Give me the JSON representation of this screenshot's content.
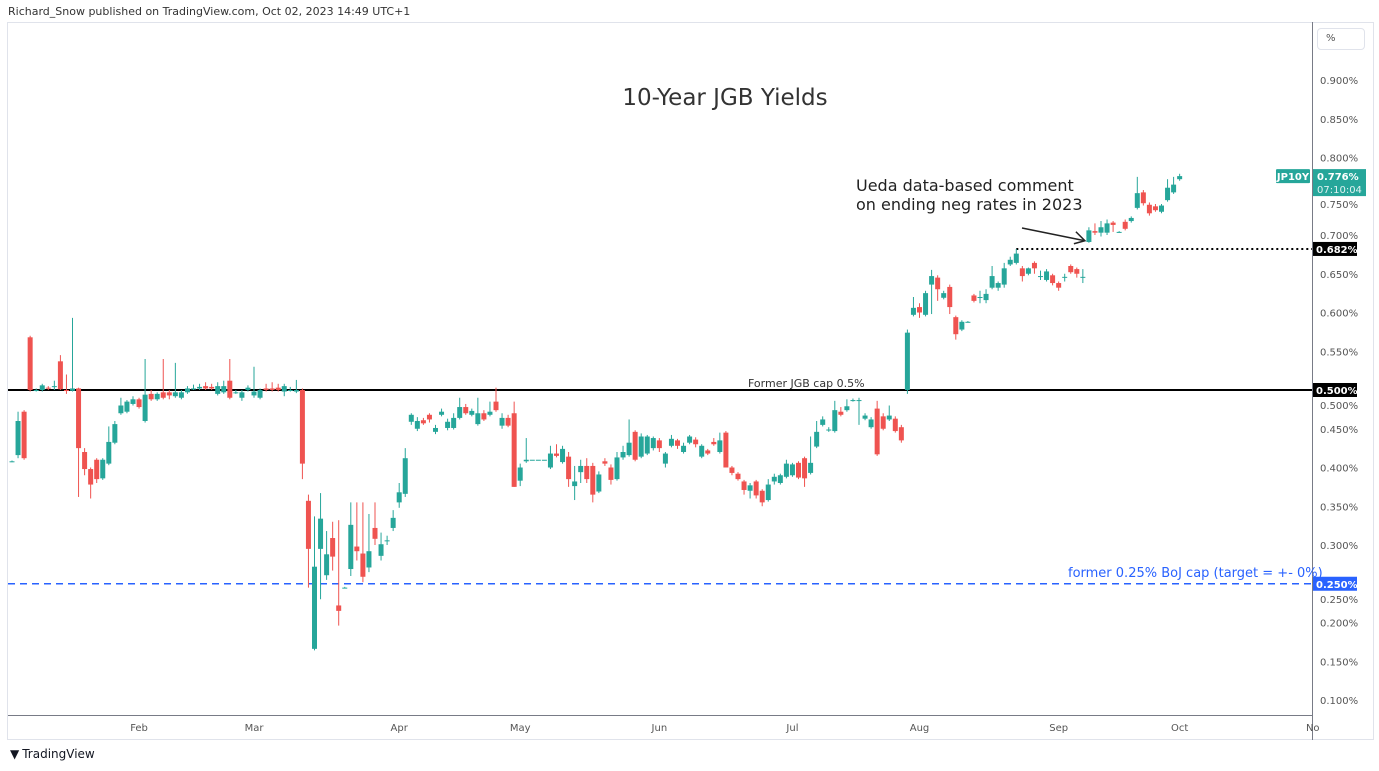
{
  "header": {
    "published": "Richard_Snow published on TradingView.com, Oct 02, 2023 14:49 UTC+1"
  },
  "footer": {
    "brand": "TradingView",
    "logo": "17"
  },
  "price_axis": {
    "unit": "%"
  },
  "chart_data": {
    "type": "candlestick",
    "title": "10-Year JGB Yields",
    "symbol": "JP10Y",
    "last_price_label": "0.776%",
    "countdown": "07:10:04",
    "ylim": [
      0.075,
      0.95
    ],
    "xlim_bars": [
      -1,
      215
    ],
    "y_ticks": [
      0.1,
      0.15,
      0.2,
      0.25,
      0.3,
      0.35,
      0.4,
      0.45,
      0.5,
      0.55,
      0.6,
      0.65,
      0.7,
      0.75,
      0.8,
      0.85,
      0.9
    ],
    "y_tick_format": "%",
    "month_ticks": [
      {
        "label": "Feb",
        "bar": 21
      },
      {
        "label": "Mar",
        "bar": 40
      },
      {
        "label": "Apr",
        "bar": 64
      },
      {
        "label": "May",
        "bar": 84
      },
      {
        "label": "Jun",
        "bar": 107
      },
      {
        "label": "Jul",
        "bar": 129
      },
      {
        "label": "Aug",
        "bar": 150
      },
      {
        "label": "Sep",
        "bar": 173
      },
      {
        "label": "Oct",
        "bar": 193
      },
      {
        "label": "No",
        "bar": 215
      }
    ],
    "colors": {
      "up": "#26a69a",
      "down": "#ef5350",
      "cap": "#000000",
      "boj": "#2962ff"
    },
    "levels": [
      {
        "name": "former-cap-line",
        "value": 0.5,
        "style": "solid",
        "color": "#000000",
        "label": "0.500%",
        "text": "Former JGB cap 0.5%"
      },
      {
        "name": "boj-cap-line",
        "value": 0.25,
        "style": "dashed",
        "color": "#2962ff",
        "label": "0.250%",
        "text": "former 0.25% BoJ cap (target = +- 0%)"
      },
      {
        "name": "ueda-level-line",
        "value": 0.682,
        "style": "dotted",
        "color": "#000000",
        "label": "0.682%",
        "from_bar": 166
      }
    ],
    "annotation": {
      "line1": "Ueda data-based comment",
      "line2": "on ending neg rates in 2023",
      "arrow_to_bar": 178,
      "arrow_to_value": 0.69
    },
    "candles_fields": [
      "bar",
      "open",
      "high",
      "low",
      "close"
    ],
    "candles": [
      [
        0,
        0.408,
        0.409,
        0.407,
        0.408
      ],
      [
        1,
        0.416,
        0.472,
        0.412,
        0.46
      ],
      [
        2,
        0.472,
        0.474,
        0.41,
        0.412
      ],
      [
        3,
        0.568,
        0.57,
        0.498,
        0.5
      ],
      [
        4,
        0.5,
        0.502,
        0.498,
        0.5
      ],
      [
        5,
        0.5,
        0.508,
        0.498,
        0.506
      ],
      [
        6,
        0.503,
        0.505,
        0.5,
        0.502
      ],
      [
        7,
        0.505,
        0.512,
        0.5,
        0.505
      ],
      [
        8,
        0.537,
        0.545,
        0.5,
        0.501
      ],
      [
        9,
        0.5,
        0.52,
        0.495,
        0.499
      ],
      [
        10,
        0.499,
        0.593,
        0.498,
        0.502
      ],
      [
        11,
        0.502,
        0.503,
        0.362,
        0.425
      ],
      [
        12,
        0.42,
        0.425,
        0.39,
        0.398
      ],
      [
        13,
        0.398,
        0.4,
        0.36,
        0.378
      ],
      [
        14,
        0.41,
        0.412,
        0.38,
        0.385
      ],
      [
        15,
        0.386,
        0.412,
        0.384,
        0.41
      ],
      [
        16,
        0.405,
        0.453,
        0.403,
        0.433
      ],
      [
        17,
        0.432,
        0.46,
        0.43,
        0.456
      ],
      [
        18,
        0.47,
        0.49,
        0.468,
        0.48
      ],
      [
        19,
        0.472,
        0.487,
        0.47,
        0.485
      ],
      [
        20,
        0.482,
        0.492,
        0.48,
        0.488
      ],
      [
        21,
        0.488,
        0.49,
        0.476,
        0.478
      ],
      [
        22,
        0.46,
        0.54,
        0.458,
        0.494
      ],
      [
        23,
        0.495,
        0.5,
        0.486,
        0.488
      ],
      [
        24,
        0.488,
        0.497,
        0.486,
        0.495
      ],
      [
        25,
        0.497,
        0.54,
        0.488,
        0.49
      ],
      [
        26,
        0.497,
        0.5,
        0.488,
        0.493
      ],
      [
        27,
        0.492,
        0.535,
        0.49,
        0.497
      ],
      [
        28,
        0.49,
        0.5,
        0.488,
        0.497
      ],
      [
        29,
        0.497,
        0.505,
        0.495,
        0.502
      ],
      [
        30,
        0.502,
        0.507,
        0.5,
        0.502
      ],
      [
        31,
        0.502,
        0.508,
        0.5,
        0.504
      ],
      [
        32,
        0.505,
        0.51,
        0.5,
        0.502
      ],
      [
        33,
        0.504,
        0.508,
        0.5,
        0.502
      ],
      [
        34,
        0.495,
        0.51,
        0.493,
        0.505
      ],
      [
        35,
        0.497,
        0.512,
        0.495,
        0.505
      ],
      [
        36,
        0.512,
        0.54,
        0.488,
        0.49
      ],
      [
        37,
        0.497,
        0.5,
        0.495,
        0.497
      ],
      [
        38,
        0.49,
        0.5,
        0.486,
        0.497
      ],
      [
        39,
        0.5,
        0.506,
        0.498,
        0.503
      ],
      [
        40,
        0.493,
        0.53,
        0.49,
        0.498
      ],
      [
        41,
        0.49,
        0.502,
        0.488,
        0.5
      ],
      [
        42,
        0.502,
        0.508,
        0.498,
        0.5
      ],
      [
        43,
        0.502,
        0.51,
        0.498,
        0.5
      ],
      [
        44,
        0.503,
        0.508,
        0.498,
        0.5
      ],
      [
        45,
        0.498,
        0.508,
        0.492,
        0.505
      ],
      [
        46,
        0.5,
        0.504,
        0.498,
        0.5
      ],
      [
        47,
        0.498,
        0.513,
        0.496,
        0.5
      ],
      [
        48,
        0.5,
        0.502,
        0.385,
        0.405
      ],
      [
        49,
        0.357,
        0.365,
        0.245,
        0.295
      ],
      [
        50,
        0.166,
        0.337,
        0.164,
        0.272
      ],
      [
        51,
        0.295,
        0.367,
        0.23,
        0.334
      ],
      [
        52,
        0.261,
        0.318,
        0.255,
        0.288
      ],
      [
        53,
        0.309,
        0.33,
        0.267,
        0.285
      ],
      [
        54,
        0.222,
        0.332,
        0.196,
        0.215
      ],
      [
        55,
        0.245,
        0.246,
        0.244,
        0.245
      ],
      [
        56,
        0.269,
        0.355,
        0.26,
        0.326
      ],
      [
        57,
        0.298,
        0.355,
        0.28,
        0.292
      ],
      [
        58,
        0.289,
        0.355,
        0.252,
        0.259
      ],
      [
        59,
        0.271,
        0.34,
        0.265,
        0.292
      ],
      [
        60,
        0.322,
        0.355,
        0.3,
        0.308
      ],
      [
        61,
        0.286,
        0.316,
        0.28,
        0.301
      ],
      [
        62,
        0.305,
        0.312,
        0.3,
        0.306
      ],
      [
        63,
        0.322,
        0.345,
        0.318,
        0.335
      ],
      [
        64,
        0.355,
        0.38,
        0.348,
        0.368
      ],
      [
        65,
        0.366,
        0.425,
        0.362,
        0.412
      ],
      [
        66,
        0.459,
        0.47,
        0.455,
        0.468
      ],
      [
        67,
        0.45,
        0.465,
        0.447,
        0.46
      ],
      [
        68,
        0.461,
        0.464,
        0.455,
        0.457
      ],
      [
        69,
        0.468,
        0.47,
        0.458,
        0.462
      ],
      [
        70,
        0.446,
        0.455,
        0.443,
        0.451
      ],
      [
        71,
        0.468,
        0.476,
        0.466,
        0.472
      ],
      [
        72,
        0.451,
        0.463,
        0.448,
        0.459
      ],
      [
        73,
        0.451,
        0.47,
        0.449,
        0.464
      ],
      [
        74,
        0.464,
        0.49,
        0.462,
        0.478
      ],
      [
        75,
        0.478,
        0.482,
        0.468,
        0.47
      ],
      [
        76,
        0.468,
        0.476,
        0.466,
        0.473
      ],
      [
        77,
        0.456,
        0.49,
        0.454,
        0.47
      ],
      [
        78,
        0.47,
        0.474,
        0.46,
        0.462
      ],
      [
        79,
        0.468,
        0.485,
        0.466,
        0.472
      ],
      [
        80,
        0.485,
        0.503,
        0.472,
        0.474
      ],
      [
        81,
        0.454,
        0.47,
        0.45,
        0.464
      ],
      [
        82,
        0.464,
        0.468,
        0.452,
        0.454
      ],
      [
        83,
        0.47,
        0.485,
        0.375,
        0.375
      ],
      [
        84,
        0.383,
        0.405,
        0.376,
        0.4
      ],
      [
        85,
        0.408,
        0.438,
        0.406,
        0.41
      ],
      [
        86,
        0.41,
        0.41,
        0.41,
        0.41
      ],
      [
        87,
        0.41,
        0.41,
        0.41,
        0.41
      ],
      [
        88,
        0.41,
        0.41,
        0.41,
        0.41
      ],
      [
        89,
        0.4,
        0.428,
        0.398,
        0.418
      ],
      [
        90,
        0.418,
        0.43,
        0.413,
        0.415
      ],
      [
        91,
        0.407,
        0.428,
        0.405,
        0.424
      ],
      [
        92,
        0.414,
        0.42,
        0.375,
        0.385
      ],
      [
        93,
        0.376,
        0.402,
        0.358,
        0.382
      ],
      [
        94,
        0.394,
        0.41,
        0.38,
        0.402
      ],
      [
        95,
        0.402,
        0.412,
        0.38,
        0.385
      ],
      [
        96,
        0.402,
        0.406,
        0.355,
        0.365
      ],
      [
        97,
        0.369,
        0.395,
        0.367,
        0.391
      ],
      [
        98,
        0.408,
        0.412,
        0.402,
        0.405
      ],
      [
        99,
        0.4,
        0.404,
        0.378,
        0.384
      ],
      [
        100,
        0.385,
        0.42,
        0.383,
        0.413
      ],
      [
        101,
        0.413,
        0.428,
        0.41,
        0.42
      ],
      [
        102,
        0.416,
        0.462,
        0.414,
        0.432
      ],
      [
        103,
        0.446,
        0.448,
        0.408,
        0.41
      ],
      [
        104,
        0.414,
        0.444,
        0.412,
        0.44
      ],
      [
        105,
        0.418,
        0.442,
        0.416,
        0.44
      ],
      [
        106,
        0.425,
        0.44,
        0.422,
        0.438
      ],
      [
        107,
        0.435,
        0.438,
        0.42,
        0.425
      ],
      [
        108,
        0.405,
        0.42,
        0.4,
        0.418
      ],
      [
        109,
        0.428,
        0.442,
        0.426,
        0.437
      ],
      [
        110,
        0.435,
        0.437,
        0.424,
        0.428
      ],
      [
        111,
        0.42,
        0.432,
        0.418,
        0.428
      ],
      [
        112,
        0.432,
        0.442,
        0.43,
        0.44
      ],
      [
        113,
        0.436,
        0.439,
        0.426,
        0.43
      ],
      [
        114,
        0.414,
        0.43,
        0.412,
        0.428
      ],
      [
        115,
        0.422,
        0.424,
        0.416,
        0.418
      ],
      [
        116,
        0.433,
        0.438,
        0.428,
        0.43
      ],
      [
        117,
        0.42,
        0.445,
        0.418,
        0.435
      ],
      [
        118,
        0.445,
        0.447,
        0.4,
        0.4
      ],
      [
        119,
        0.4,
        0.402,
        0.39,
        0.393
      ],
      [
        120,
        0.392,
        0.394,
        0.383,
        0.385
      ],
      [
        121,
        0.382,
        0.384,
        0.365,
        0.371
      ],
      [
        122,
        0.37,
        0.38,
        0.36,
        0.377
      ],
      [
        123,
        0.382,
        0.384,
        0.36,
        0.364
      ],
      [
        124,
        0.37,
        0.372,
        0.35,
        0.355
      ],
      [
        125,
        0.358,
        0.385,
        0.356,
        0.378
      ],
      [
        126,
        0.382,
        0.392,
        0.378,
        0.388
      ],
      [
        127,
        0.38,
        0.392,
        0.378,
        0.39
      ],
      [
        128,
        0.388,
        0.41,
        0.386,
        0.405
      ],
      [
        129,
        0.39,
        0.406,
        0.388,
        0.404
      ],
      [
        130,
        0.406,
        0.408,
        0.385,
        0.387
      ],
      [
        131,
        0.412,
        0.414,
        0.375,
        0.386
      ],
      [
        132,
        0.393,
        0.44,
        0.391,
        0.406
      ],
      [
        133,
        0.427,
        0.46,
        0.425,
        0.446
      ],
      [
        134,
        0.455,
        0.466,
        0.453,
        0.462
      ],
      [
        135,
        0.449,
        0.452,
        0.446,
        0.449
      ],
      [
        136,
        0.447,
        0.486,
        0.445,
        0.474
      ],
      [
        137,
        0.472,
        0.478,
        0.466,
        0.468
      ],
      [
        138,
        0.474,
        0.488,
        0.472,
        0.479
      ],
      [
        139,
        0.487,
        0.489,
        0.485,
        0.487
      ],
      [
        140,
        0.487,
        0.49,
        0.455,
        0.487
      ],
      [
        141,
        0.463,
        0.47,
        0.461,
        0.467
      ],
      [
        142,
        0.452,
        0.465,
        0.45,
        0.462
      ],
      [
        143,
        0.476,
        0.486,
        0.415,
        0.417
      ],
      [
        144,
        0.466,
        0.47,
        0.448,
        0.45
      ],
      [
        145,
        0.462,
        0.48,
        0.46,
        0.467
      ],
      [
        146,
        0.463,
        0.466,
        0.445,
        0.447
      ],
      [
        147,
        0.452,
        0.455,
        0.432,
        0.435
      ],
      [
        148,
        0.5,
        0.578,
        0.495,
        0.574
      ],
      [
        149,
        0.597,
        0.62,
        0.595,
        0.606
      ],
      [
        150,
        0.607,
        0.612,
        0.593,
        0.6
      ],
      [
        151,
        0.597,
        0.628,
        0.595,
        0.625
      ],
      [
        152,
        0.636,
        0.655,
        0.598,
        0.647
      ],
      [
        153,
        0.645,
        0.648,
        0.615,
        0.63
      ],
      [
        154,
        0.619,
        0.628,
        0.617,
        0.625
      ],
      [
        155,
        0.633,
        0.636,
        0.598,
        0.607
      ],
      [
        156,
        0.594,
        0.596,
        0.565,
        0.572
      ],
      [
        157,
        0.578,
        0.59,
        0.576,
        0.588
      ],
      [
        158,
        0.588,
        0.589,
        0.587,
        0.588
      ],
      [
        159,
        0.622,
        0.624,
        0.613,
        0.615
      ],
      [
        160,
        0.62,
        0.628,
        0.612,
        0.62
      ],
      [
        161,
        0.616,
        0.63,
        0.612,
        0.624
      ],
      [
        162,
        0.632,
        0.66,
        0.63,
        0.647
      ],
      [
        163,
        0.632,
        0.64,
        0.628,
        0.638
      ],
      [
        164,
        0.636,
        0.664,
        0.632,
        0.657
      ],
      [
        165,
        0.662,
        0.672,
        0.66,
        0.668
      ],
      [
        166,
        0.664,
        0.682,
        0.662,
        0.676
      ],
      [
        167,
        0.657,
        0.66,
        0.64,
        0.647
      ],
      [
        168,
        0.65,
        0.658,
        0.648,
        0.657
      ],
      [
        169,
        0.664,
        0.666,
        0.65,
        0.657
      ],
      [
        170,
        0.647,
        0.654,
        0.642,
        0.647
      ],
      [
        171,
        0.642,
        0.656,
        0.64,
        0.653
      ],
      [
        172,
        0.648,
        0.65,
        0.635,
        0.638
      ],
      [
        173,
        0.638,
        0.64,
        0.628,
        0.632
      ],
      [
        174,
        0.645,
        0.65,
        0.64,
        0.646
      ],
      [
        175,
        0.66,
        0.662,
        0.65,
        0.652
      ],
      [
        176,
        0.656,
        0.658,
        0.645,
        0.65
      ],
      [
        177,
        0.646,
        0.656,
        0.638,
        0.646
      ],
      [
        178,
        0.691,
        0.71,
        0.69,
        0.706
      ],
      [
        179,
        0.705,
        0.715,
        0.7,
        0.703
      ],
      [
        180,
        0.703,
        0.718,
        0.698,
        0.71
      ],
      [
        181,
        0.703,
        0.72,
        0.7,
        0.715
      ],
      [
        182,
        0.716,
        0.718,
        0.704,
        0.713
      ],
      [
        183,
        0.704,
        0.705,
        0.703,
        0.704
      ],
      [
        184,
        0.717,
        0.72,
        0.706,
        0.708
      ],
      [
        185,
        0.718,
        0.724,
        0.716,
        0.722
      ],
      [
        186,
        0.735,
        0.775,
        0.733,
        0.754
      ],
      [
        187,
        0.755,
        0.758,
        0.738,
        0.741
      ],
      [
        188,
        0.739,
        0.742,
        0.725,
        0.728
      ],
      [
        189,
        0.737,
        0.74,
        0.73,
        0.732
      ],
      [
        190,
        0.73,
        0.74,
        0.728,
        0.738
      ],
      [
        191,
        0.745,
        0.772,
        0.743,
        0.761
      ],
      [
        192,
        0.755,
        0.775,
        0.753,
        0.765
      ],
      [
        193,
        0.772,
        0.779,
        0.77,
        0.776
      ]
    ]
  }
}
